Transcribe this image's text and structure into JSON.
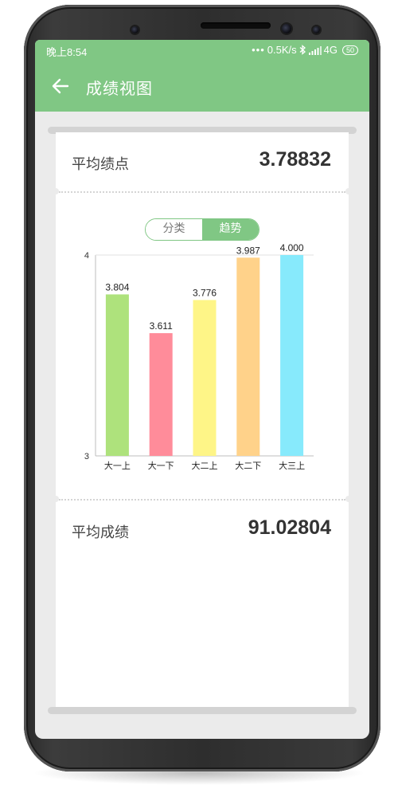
{
  "status_bar": {
    "time": "晚上8:54",
    "network_speed": "0.5K/s",
    "network_type": "4G",
    "battery": "50"
  },
  "app_bar": {
    "title": "成绩视图",
    "back_icon": "back-arrow-icon"
  },
  "summary": {
    "gpa_label": "平均绩点",
    "gpa_value": "3.78832",
    "score_label": "平均成绩",
    "score_value": "91.02804"
  },
  "view_toggle": {
    "options": [
      "分类",
      "趋势"
    ],
    "selected": "趋势"
  },
  "colors": {
    "accent": "#80c784"
  },
  "chart_data": {
    "type": "bar",
    "categories": [
      "大一上",
      "大一下",
      "大二上",
      "大二下",
      "大三上"
    ],
    "values": [
      3.804,
      3.611,
      3.776,
      3.987,
      4.0
    ],
    "value_labels": [
      "3.804",
      "3.611",
      "3.776",
      "3.987",
      "4.000"
    ],
    "bar_colors": [
      "#aee27c",
      "#ff8c9a",
      "#fef587",
      "#ffd28a",
      "#87eafc"
    ],
    "ylim": [
      3,
      4
    ],
    "y_ticks": [
      "3",
      "4"
    ],
    "title": "",
    "xlabel": "",
    "ylabel": "",
    "grid": false
  }
}
